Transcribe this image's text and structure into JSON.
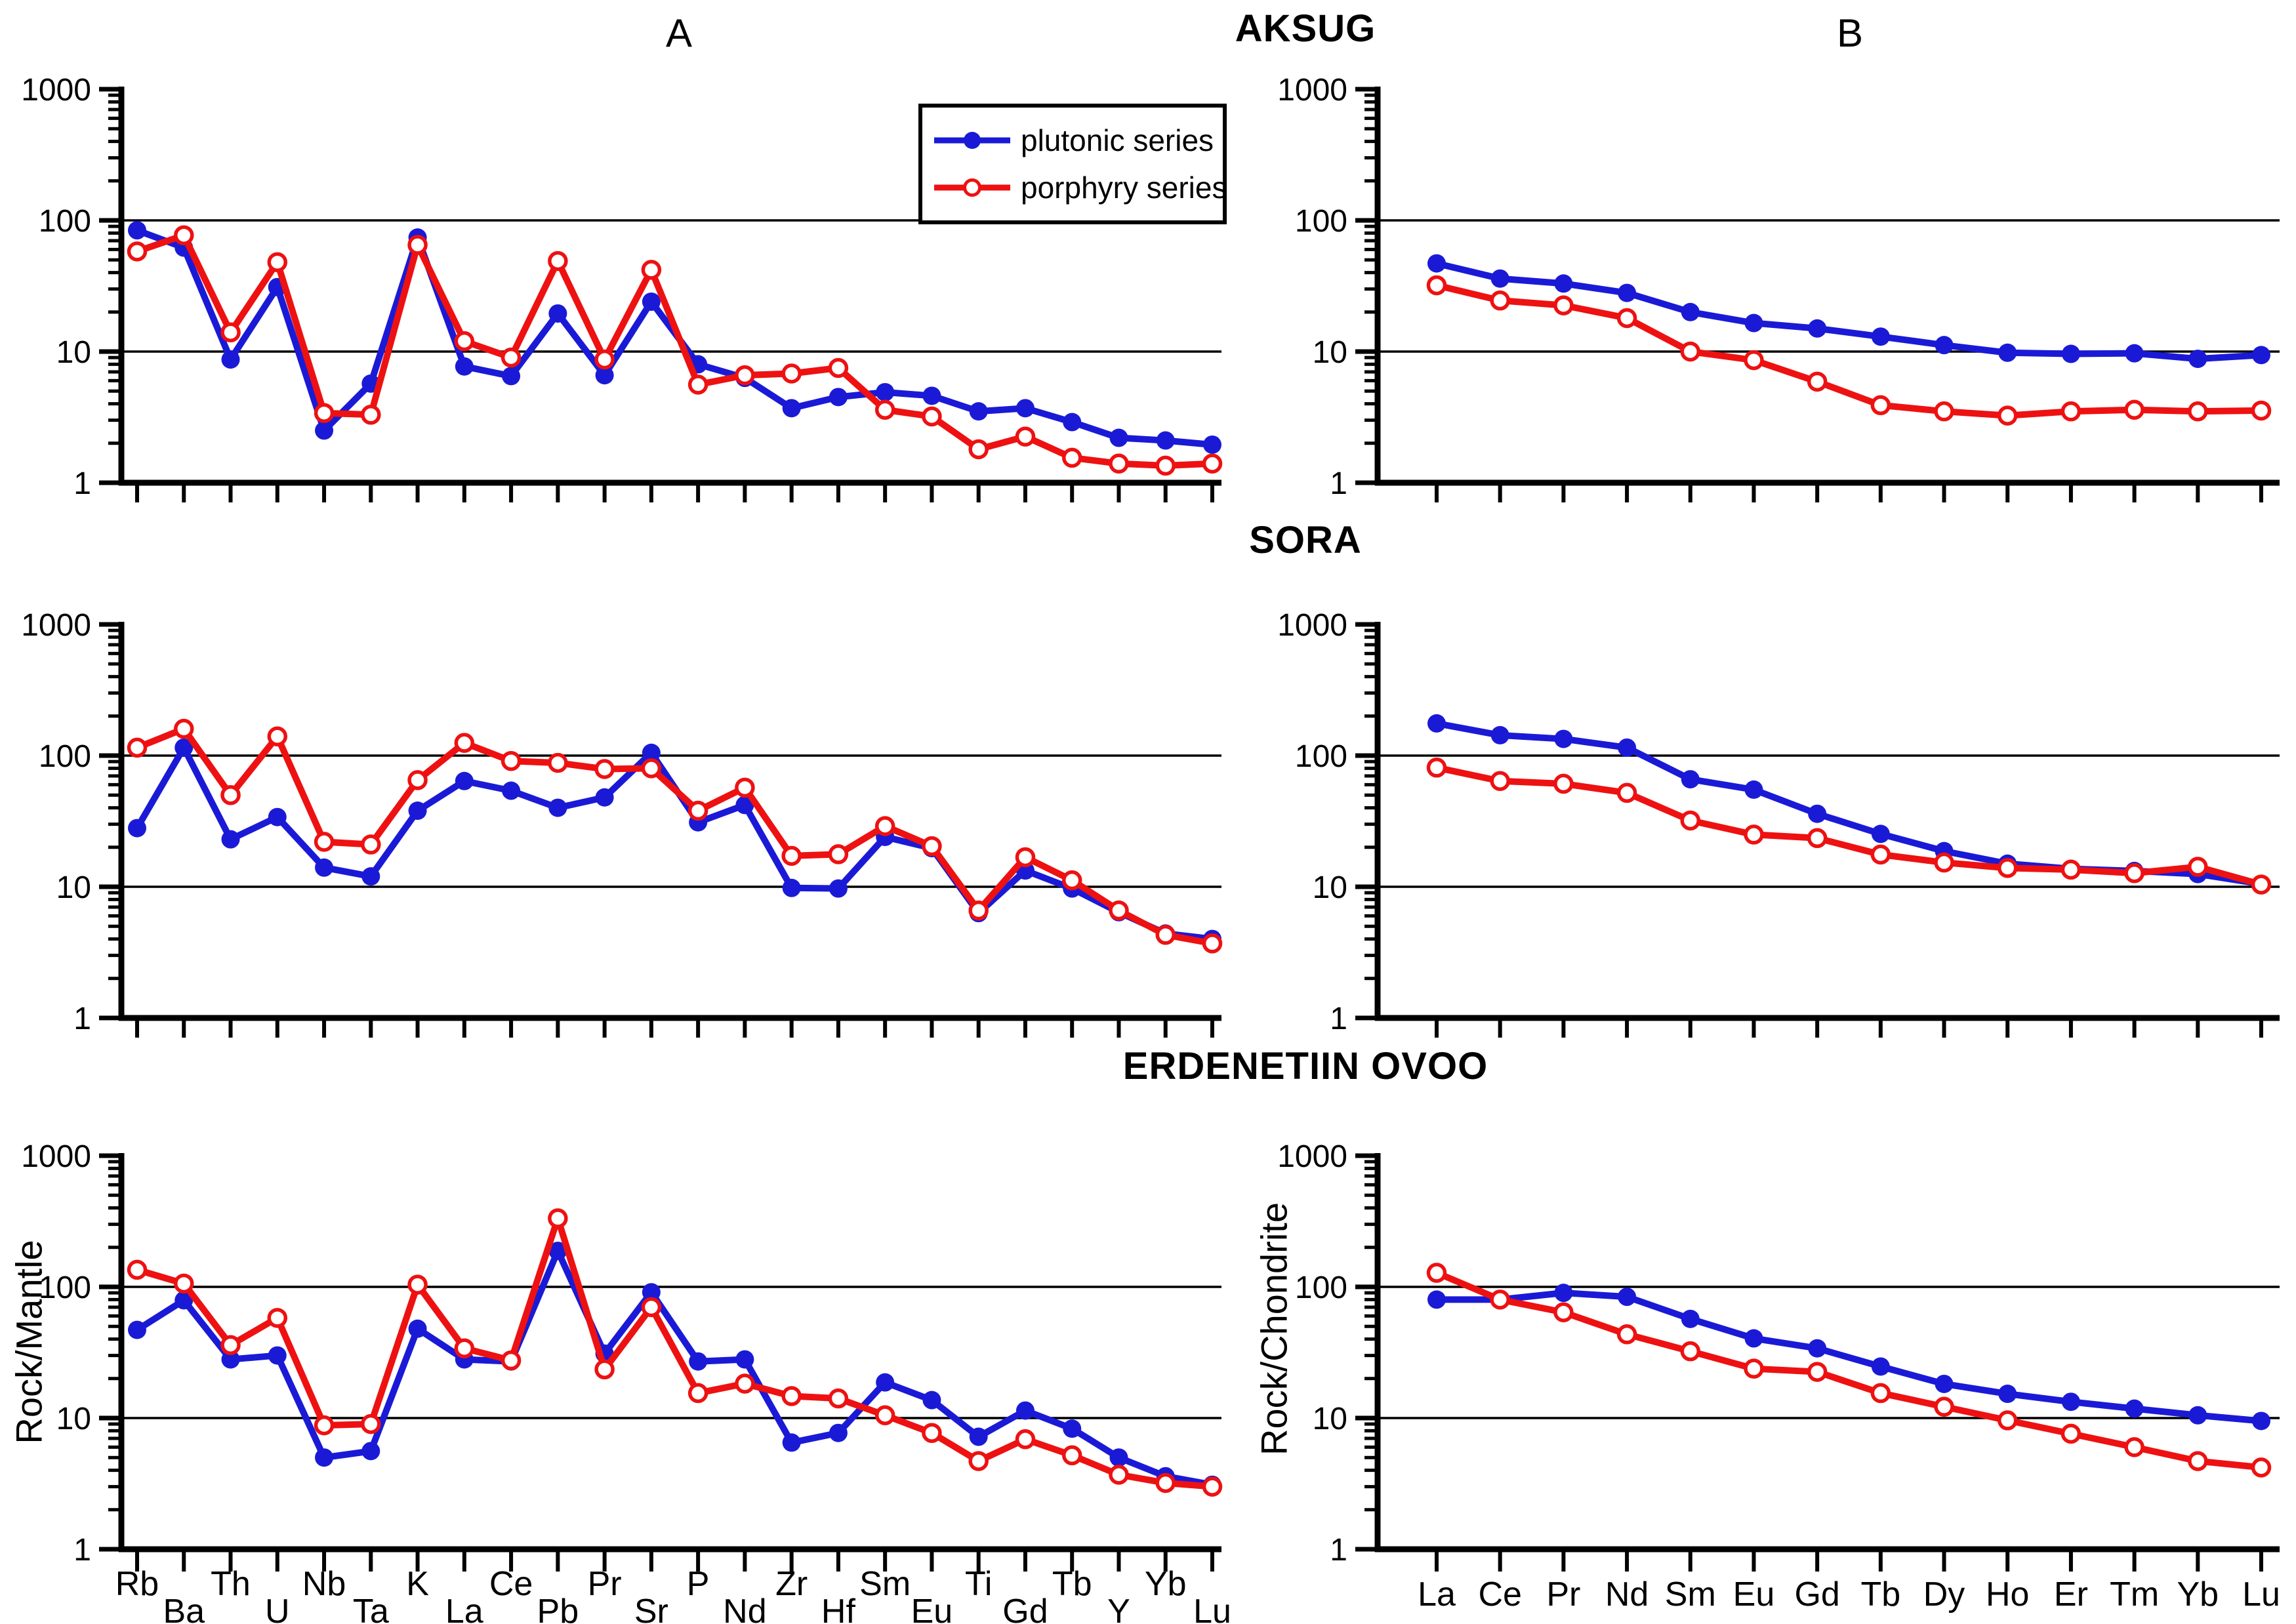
{
  "figure": {
    "panel_a_label": "A",
    "panel_b_label": "B",
    "series_styles": {
      "plutonic": {
        "color": "#1a1ad6",
        "marker": "filled"
      },
      "porphyry": {
        "color": "#ee1111",
        "marker": "open"
      }
    },
    "legend": {
      "entries": [
        {
          "label": "plutonic series",
          "series": "plutonic"
        },
        {
          "label": "porphyry series",
          "series": "porphyry"
        }
      ]
    }
  },
  "sections": [
    {
      "title": "AKSUG"
    },
    {
      "title": "SORA"
    },
    {
      "title": "ERDENETIIN OVOO"
    }
  ],
  "chart_data": [
    {
      "id": "aksug-a",
      "section": "AKSUG",
      "panel": "A",
      "type": "line",
      "log_y": true,
      "ylim": [
        1,
        1000
      ],
      "yticks": [
        1000,
        100,
        10,
        1
      ],
      "gridlines": [
        100,
        10
      ],
      "ylabel": "",
      "categories": [
        "Rb",
        "Ba",
        "Th",
        "U",
        "Nb",
        "Ta",
        "K",
        "La",
        "Ce",
        "Pb",
        "Pr",
        "Sr",
        "P",
        "Nd",
        "Zr",
        "Hf",
        "Sm",
        "Eu",
        "Ti",
        "Gd",
        "Tb",
        "Y",
        "Yb",
        "Lu"
      ],
      "series": [
        {
          "name": "plutonic series",
          "style": "plutonic",
          "color": "#1a1ad6",
          "marker": "filled",
          "values": [
            84,
            62,
            8.7,
            31,
            2.5,
            5.7,
            74,
            7.7,
            6.5,
            19.5,
            6.6,
            24,
            8,
            6.3,
            3.7,
            4.5,
            4.9,
            4.6,
            3.5,
            3.7,
            2.9,
            2.2,
            2.1,
            1.95
          ]
        },
        {
          "name": "porphyry series",
          "style": "porphyry",
          "color": "#ee1111",
          "marker": "open",
          "values": [
            58,
            77,
            14,
            48,
            3.4,
            3.3,
            65,
            12,
            9,
            49,
            8.7,
            42,
            5.6,
            6.6,
            6.8,
            7.5,
            3.6,
            3.2,
            1.8,
            2.25,
            1.55,
            1.4,
            1.35,
            1.4
          ]
        }
      ]
    },
    {
      "id": "aksug-b",
      "section": "AKSUG",
      "panel": "B",
      "type": "line",
      "log_y": true,
      "ylim": [
        1,
        1000
      ],
      "yticks": [
        1000,
        100,
        10,
        1
      ],
      "gridlines": [
        100,
        10
      ],
      "ylabel": "",
      "categories": [
        "La",
        "Ce",
        "Pr",
        "Nd",
        "Sm",
        "Eu",
        "Gd",
        "Tb",
        "Dy",
        "Ho",
        "Er",
        "Tm",
        "Yb",
        "Lu"
      ],
      "series": [
        {
          "name": "plutonic series",
          "style": "plutonic",
          "color": "#1a1ad6",
          "marker": "filled",
          "values": [
            47,
            36,
            33,
            28,
            20,
            16.5,
            15,
            13,
            11.2,
            9.8,
            9.6,
            9.7,
            8.8,
            9.4
          ]
        },
        {
          "name": "porphyry series",
          "style": "porphyry",
          "color": "#ee1111",
          "marker": "open",
          "values": [
            32,
            24.5,
            22.5,
            18,
            10,
            8.6,
            5.9,
            3.9,
            3.5,
            3.25,
            3.5,
            3.6,
            3.5,
            3.55
          ]
        }
      ]
    },
    {
      "id": "sora-a",
      "section": "SORA",
      "panel": "A",
      "type": "line",
      "log_y": true,
      "ylim": [
        1,
        1000
      ],
      "yticks": [
        1000,
        100,
        10,
        1
      ],
      "gridlines": [
        100,
        10
      ],
      "ylabel": "",
      "categories": [
        "Rb",
        "Ba",
        "Th",
        "U",
        "Nb",
        "Ta",
        "K",
        "La",
        "Ce",
        "Pb",
        "Pr",
        "Sr",
        "P",
        "Nd",
        "Zr",
        "Hf",
        "Sm",
        "Eu",
        "Ti",
        "Gd",
        "Tb",
        "Y",
        "Yb",
        "Lu"
      ],
      "series": [
        {
          "name": "plutonic series",
          "style": "plutonic",
          "color": "#1a1ad6",
          "marker": "filled",
          "values": [
            28,
            115,
            23,
            34,
            14,
            12,
            38,
            64,
            54,
            40,
            48,
            105,
            31,
            42,
            9.8,
            9.7,
            24,
            19.7,
            6.3,
            13.3,
            9.7,
            6.4,
            4.4,
            4
          ]
        },
        {
          "name": "porphyry series",
          "style": "porphyry",
          "color": "#ee1111",
          "marker": "open",
          "values": [
            115,
            160,
            50,
            140,
            22,
            21,
            65,
            125,
            91,
            88,
            79,
            80,
            38,
            57,
            17.2,
            17.7,
            29,
            20.4,
            6.6,
            16.8,
            11.2,
            6.6,
            4.3,
            3.7
          ]
        }
      ]
    },
    {
      "id": "sora-b",
      "section": "SORA",
      "panel": "B",
      "type": "line",
      "log_y": true,
      "ylim": [
        1,
        1000
      ],
      "yticks": [
        1000,
        100,
        10,
        1
      ],
      "gridlines": [
        100,
        10
      ],
      "ylabel": "",
      "categories": [
        "La",
        "Ce",
        "Pr",
        "Nd",
        "Sm",
        "Eu",
        "Gd",
        "Tb",
        "Dy",
        "Ho",
        "Er",
        "Tm",
        "Yb",
        "Lu"
      ],
      "series": [
        {
          "name": "plutonic series",
          "style": "plutonic",
          "color": "#1a1ad6",
          "marker": "filled",
          "values": [
            176,
            143,
            134,
            115,
            66,
            55,
            36,
            25.3,
            18.7,
            15,
            13.7,
            13.2,
            12.5,
            10.5
          ]
        },
        {
          "name": "porphyry series",
          "style": "porphyry",
          "color": "#ee1111",
          "marker": "open",
          "values": [
            81,
            64,
            61,
            52,
            32,
            25,
            23.5,
            17.6,
            15.3,
            13.9,
            13.5,
            12.7,
            14.2,
            10.4
          ]
        }
      ]
    },
    {
      "id": "erdenetiin-ovoo-a",
      "section": "ERDENETIIN OVOO",
      "panel": "A",
      "type": "line",
      "log_y": true,
      "ylim": [
        1,
        1000
      ],
      "yticks": [
        1000,
        100,
        10,
        1
      ],
      "gridlines": [
        100,
        10
      ],
      "ylabel": "Rock/Mantle",
      "categories": [
        "Rb",
        "Ba",
        "Th",
        "U",
        "Nb",
        "Ta",
        "K",
        "La",
        "Ce",
        "Pb",
        "Pr",
        "Sr",
        "P",
        "Nd",
        "Zr",
        "Hf",
        "Sm",
        "Eu",
        "Ti",
        "Gd",
        "Tb",
        "Y",
        "Yb",
        "Lu"
      ],
      "series": [
        {
          "name": "plutonic series",
          "style": "plutonic",
          "color": "#1a1ad6",
          "marker": "filled",
          "values": [
            47,
            79,
            28,
            30,
            5,
            5.6,
            48,
            28,
            27,
            188,
            31,
            91,
            27,
            28,
            6.5,
            7.7,
            18.7,
            13.7,
            7.2,
            11.4,
            8.3,
            5,
            3.6,
            3.1
          ]
        },
        {
          "name": "porphyry series",
          "style": "porphyry",
          "color": "#ee1111",
          "marker": "open",
          "values": [
            135,
            106,
            36,
            58,
            8.8,
            9,
            104,
            34,
            27.5,
            333,
            23.5,
            70,
            15.5,
            18.3,
            14.7,
            14.1,
            10.5,
            7.7,
            4.7,
            6.9,
            5.2,
            3.7,
            3.2,
            3
          ]
        }
      ]
    },
    {
      "id": "erdenetiin-ovoo-b",
      "section": "ERDENETIIN OVOO",
      "panel": "B",
      "type": "line",
      "log_y": true,
      "ylim": [
        1,
        1000
      ],
      "yticks": [
        1000,
        100,
        10,
        1
      ],
      "gridlines": [
        100,
        10
      ],
      "ylabel": "Rock/Chondrite",
      "categories": [
        "La",
        "Ce",
        "Pr",
        "Nd",
        "Sm",
        "Eu",
        "Gd",
        "Tb",
        "Dy",
        "Ho",
        "Er",
        "Tm",
        "Yb",
        "Lu"
      ],
      "series": [
        {
          "name": "plutonic series",
          "style": "plutonic",
          "color": "#1a1ad6",
          "marker": "filled",
          "values": [
            80,
            80,
            90,
            84,
            57,
            40.5,
            34,
            24.7,
            18.2,
            15.3,
            13.3,
            11.8,
            10.5,
            9.5
          ]
        },
        {
          "name": "porphyry series",
          "style": "porphyry",
          "color": "#ee1111",
          "marker": "open",
          "values": [
            128,
            80,
            64,
            43.5,
            32.3,
            23.8,
            22.5,
            15.5,
            12.2,
            9.6,
            7.6,
            6,
            4.7,
            4.2
          ]
        }
      ]
    }
  ]
}
